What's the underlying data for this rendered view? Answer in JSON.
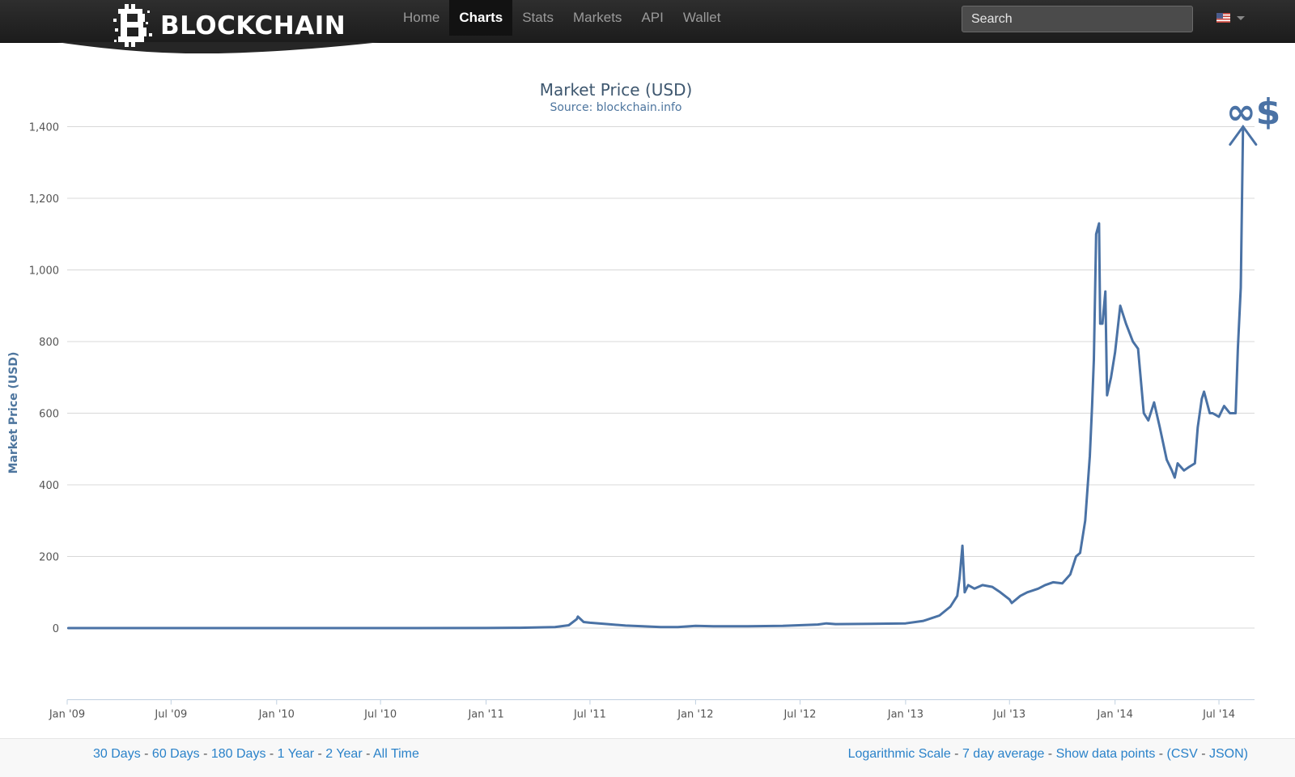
{
  "brand": {
    "name": "BLOCKCHAIN"
  },
  "nav": {
    "items": [
      {
        "label": "Home",
        "active": false
      },
      {
        "label": "Charts",
        "active": true
      },
      {
        "label": "Stats",
        "active": false
      },
      {
        "label": "Markets",
        "active": false
      },
      {
        "label": "API",
        "active": false
      },
      {
        "label": "Wallet",
        "active": false
      }
    ]
  },
  "search": {
    "placeholder": "Search",
    "value": ""
  },
  "language": {
    "icon": "us-flag-icon"
  },
  "colors": {
    "series": "#4a72a5",
    "title": "#3e576f",
    "link": "#2a82c9",
    "annotation": "#4a72a5",
    "navbar": "#262626"
  },
  "annotation": {
    "text": "∞$"
  },
  "footer": {
    "ranges": [
      "30 Days",
      "60 Days",
      "180 Days",
      "1 Year",
      "2 Year",
      "All Time"
    ],
    "options": [
      "Logarithmic Scale",
      "7 day average",
      "Show data points"
    ],
    "downloads": [
      "CSV",
      "JSON"
    ]
  },
  "chart_data": {
    "type": "line",
    "title": "Market Price (USD)",
    "subtitle": "Source: blockchain.info",
    "xlabel": "",
    "ylabel": "Market Price (USD)",
    "x_ticks": [
      "Jan '09",
      "Jul '09",
      "Jan '10",
      "Jul '10",
      "Jan '11",
      "Jul '11",
      "Jan '12",
      "Jul '12",
      "Jan '13",
      "Jul '13",
      "Jan '14",
      "Jul '14"
    ],
    "y_ticks": [
      0,
      200,
      400,
      600,
      800,
      1000,
      1200,
      1400
    ],
    "y_tick_labels": [
      "0",
      "200",
      "400",
      "600",
      "800",
      "1,000",
      "1,200",
      "1,400"
    ],
    "xlim": [
      "2009-01-01",
      "2014-09-01"
    ],
    "ylim": [
      -200,
      1400
    ],
    "grid": true,
    "legend": "none",
    "series": [
      {
        "x": [
          "2009-01-03",
          "2010-01-01",
          "2010-07-01",
          "2011-01-01",
          "2011-03-01",
          "2011-05-01",
          "2011-05-25",
          "2011-06-08",
          "2011-06-10",
          "2011-06-20",
          "2011-07-01",
          "2011-08-01",
          "2011-09-01",
          "2011-10-01",
          "2011-11-01",
          "2011-12-01",
          "2012-01-01",
          "2012-02-01",
          "2012-04-01",
          "2012-06-01",
          "2012-08-01",
          "2012-08-16",
          "2012-09-01",
          "2012-11-01",
          "2013-01-01",
          "2013-02-01",
          "2013-03-01",
          "2013-03-20",
          "2013-04-01",
          "2013-04-05",
          "2013-04-10",
          "2013-04-14",
          "2013-04-20",
          "2013-05-01",
          "2013-05-15",
          "2013-06-01",
          "2013-06-15",
          "2013-07-01",
          "2013-07-05",
          "2013-07-20",
          "2013-08-01",
          "2013-08-20",
          "2013-09-01",
          "2013-09-15",
          "2013-10-01",
          "2013-10-15",
          "2013-10-25",
          "2013-11-01",
          "2013-11-10",
          "2013-11-18",
          "2013-11-22",
          "2013-11-25",
          "2013-11-29",
          "2013-12-04",
          "2013-12-06",
          "2013-12-10",
          "2013-12-15",
          "2013-12-18",
          "2013-12-25",
          "2014-01-01",
          "2014-01-10",
          "2014-01-20",
          "2014-02-01",
          "2014-02-10",
          "2014-02-20",
          "2014-02-28",
          "2014-03-10",
          "2014-03-20",
          "2014-04-01",
          "2014-04-10",
          "2014-04-15",
          "2014-04-20",
          "2014-05-01",
          "2014-05-10",
          "2014-05-20",
          "2014-05-25",
          "2014-06-01",
          "2014-06-05",
          "2014-06-15",
          "2014-06-20",
          "2014-07-01",
          "2014-07-10",
          "2014-07-20",
          "2014-07-30",
          "2014-08-03",
          "2014-08-08",
          "2014-08-12"
        ],
        "y": [
          0,
          0,
          0,
          0.3,
          0.9,
          3,
          8,
          25,
          32,
          17,
          15,
          11,
          7,
          5,
          3,
          3,
          6,
          5,
          5,
          6,
          10,
          13,
          11,
          12,
          13,
          20,
          35,
          60,
          90,
          140,
          230,
          100,
          120,
          110,
          120,
          115,
          100,
          80,
          70,
          90,
          100,
          110,
          120,
          128,
          125,
          150,
          200,
          210,
          300,
          480,
          620,
          750,
          1100,
          1130,
          850,
          850,
          940,
          650,
          700,
          770,
          900,
          850,
          800,
          780,
          600,
          580,
          630,
          560,
          470,
          440,
          420,
          460,
          440,
          450,
          460,
          560,
          640,
          660,
          600,
          600,
          590,
          620,
          600,
          600,
          780,
          950,
          1400
        ]
      }
    ]
  }
}
